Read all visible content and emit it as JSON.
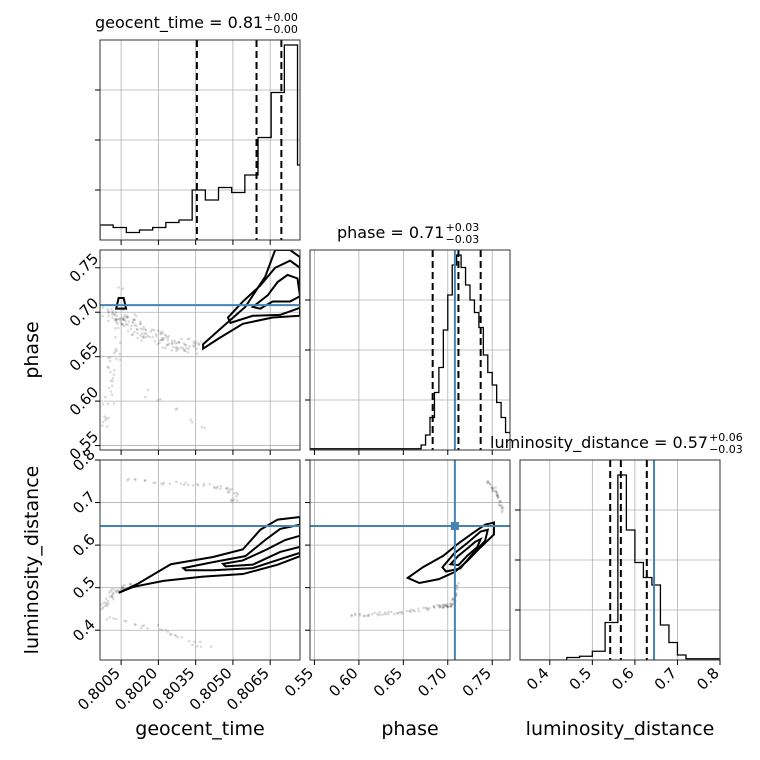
{
  "chart_data": {
    "type": "corner",
    "truth_color": "#4682b4",
    "grid": true,
    "parameters": [
      {
        "name": "geocent_time",
        "label": "geocent_time",
        "range": [
          0.79965,
          0.8077
        ],
        "ticks": [
          0.8005,
          0.802,
          0.8035,
          0.805,
          0.8065
        ],
        "tick_labels": [
          "0.8005",
          "0.8020",
          "0.8035",
          "0.8050",
          "0.8065"
        ],
        "title_main": "geocent_time = 0.81",
        "title_sup": "+0.00",
        "title_sub": "−0.00",
        "quantiles": [
          0.80355,
          0.80595,
          0.80695
        ]
      },
      {
        "name": "phase",
        "label": "phase",
        "range": [
          0.545,
          0.77
        ],
        "ticks": [
          0.55,
          0.6,
          0.65,
          0.7,
          0.75
        ],
        "tick_labels": [
          "0.55",
          "0.60",
          "0.65",
          "0.70",
          "0.75"
        ],
        "title_main": "phase = 0.71",
        "title_sup": "+0.03",
        "title_sub": "−0.03",
        "quantiles": [
          0.683,
          0.712,
          0.737
        ],
        "truth": 0.708
      },
      {
        "name": "luminosity_distance",
        "label": "luminosity_distance",
        "range": [
          0.33,
          0.8
        ],
        "ticks": [
          0.4,
          0.5,
          0.6,
          0.7,
          0.8
        ],
        "tick_labels": [
          "0.4",
          "0.5",
          "0.6",
          "0.7",
          "0.8"
        ],
        "title_main": "luminosity_distance = 0.57",
        "title_sup": "+0.06",
        "title_sub": "−0.03",
        "quantiles": [
          0.542,
          0.567,
          0.628
        ],
        "truth": 0.645
      }
    ],
    "histograms": [
      {
        "param": "geocent_time",
        "bin_edges": [
          0.79965,
          0.80018,
          0.80071,
          0.80124,
          0.80177,
          0.8023,
          0.80283,
          0.80336,
          0.80389,
          0.80442,
          0.80495,
          0.80548,
          0.80601,
          0.80654,
          0.80707,
          0.8076,
          0.8077
        ],
        "counts": [
          0.06,
          0.05,
          0.03,
          0.04,
          0.05,
          0.07,
          0.08,
          0.2,
          0.16,
          0.21,
          0.19,
          0.26,
          0.41,
          0.59,
          0.78,
          0.3
        ]
      },
      {
        "param": "phase",
        "bin_edges": [
          0.545,
          0.67,
          0.675,
          0.68,
          0.685,
          0.69,
          0.695,
          0.7,
          0.705,
          0.71,
          0.715,
          0.72,
          0.725,
          0.73,
          0.735,
          0.74,
          0.745,
          0.75,
          0.755,
          0.76,
          0.765,
          0.77
        ],
        "counts": [
          0.005,
          0.02,
          0.06,
          0.13,
          0.23,
          0.33,
          0.48,
          0.62,
          0.74,
          0.78,
          0.73,
          0.66,
          0.6,
          0.55,
          0.49,
          0.38,
          0.31,
          0.26,
          0.19,
          0.13,
          0.07
        ]
      },
      {
        "param": "luminosity_distance",
        "bin_edges": [
          0.33,
          0.44,
          0.47,
          0.5,
          0.53,
          0.56,
          0.58,
          0.6,
          0.62,
          0.64,
          0.66,
          0.68,
          0.7,
          0.72,
          0.8
        ],
        "counts": [
          0.0,
          0.01,
          0.015,
          0.035,
          0.15,
          0.74,
          0.52,
          0.39,
          0.33,
          0.3,
          0.14,
          0.07,
          0.02,
          0.005
        ]
      }
    ],
    "contours_2d": [
      {
        "x": "geocent_time",
        "y": "phase",
        "levels": [
          [
            [
              0.8058,
              0.706
            ],
            [
              0.8064,
              0.719
            ],
            [
              0.8068,
              0.734
            ],
            [
              0.8072,
              0.742
            ],
            [
              0.8076,
              0.738
            ],
            [
              0.8077,
              0.718
            ],
            [
              0.8073,
              0.712
            ],
            [
              0.8066,
              0.712
            ],
            [
              0.8061,
              0.704
            ]
          ],
          [
            [
              0.8048,
              0.694
            ],
            [
              0.8054,
              0.712
            ],
            [
              0.8061,
              0.73
            ],
            [
              0.8067,
              0.75
            ],
            [
              0.8073,
              0.758
            ],
            [
              0.8077,
              0.75
            ],
            [
              0.8077,
              0.705
            ],
            [
              0.8069,
              0.697
            ],
            [
              0.8058,
              0.696
            ],
            [
              0.8049,
              0.688
            ]
          ],
          [
            [
              0.8038,
              0.664
            ],
            [
              0.8046,
              0.684
            ],
            [
              0.8055,
              0.706
            ],
            [
              0.8063,
              0.74
            ],
            [
              0.8067,
              0.77
            ],
            [
              0.8073,
              0.77
            ],
            [
              0.8077,
              0.762
            ],
            [
              0.8077,
              0.696
            ],
            [
              0.8066,
              0.694
            ],
            [
              0.8054,
              0.687
            ],
            [
              0.8044,
              0.67
            ],
            [
              0.8038,
              0.659
            ]
          ],
          [
            [
              0.8003,
              0.704
            ],
            [
              0.8004,
              0.716
            ],
            [
              0.8006,
              0.716
            ],
            [
              0.8007,
              0.704
            ]
          ]
        ]
      },
      {
        "x": "geocent_time",
        "y": "luminosity_distance",
        "levels": [
          [
            [
              0.8046,
              0.556
            ],
            [
              0.8054,
              0.564
            ],
            [
              0.8063,
              0.588
            ],
            [
              0.8071,
              0.612
            ],
            [
              0.8077,
              0.622
            ],
            [
              0.8077,
              0.596
            ],
            [
              0.8069,
              0.584
            ],
            [
              0.8058,
              0.554
            ],
            [
              0.8047,
              0.55
            ]
          ],
          [
            [
              0.803,
              0.546
            ],
            [
              0.8042,
              0.56
            ],
            [
              0.8055,
              0.574
            ],
            [
              0.8063,
              0.612
            ],
            [
              0.8069,
              0.638
            ],
            [
              0.8077,
              0.648
            ],
            [
              0.8077,
              0.582
            ],
            [
              0.8069,
              0.567
            ],
            [
              0.8058,
              0.546
            ],
            [
              0.8042,
              0.541
            ],
            [
              0.8031,
              0.541
            ]
          ],
          [
            [
              0.8004,
              0.488
            ],
            [
              0.8012,
              0.51
            ],
            [
              0.8025,
              0.555
            ],
            [
              0.8042,
              0.572
            ],
            [
              0.8054,
              0.59
            ],
            [
              0.8061,
              0.636
            ],
            [
              0.8068,
              0.66
            ],
            [
              0.8077,
              0.666
            ],
            [
              0.8077,
              0.574
            ],
            [
              0.8068,
              0.554
            ],
            [
              0.8054,
              0.532
            ],
            [
              0.8038,
              0.526
            ],
            [
              0.8022,
              0.516
            ],
            [
              0.801,
              0.502
            ]
          ]
        ]
      },
      {
        "x": "phase",
        "y": "luminosity_distance",
        "levels": [
          [
            [
              0.703,
              0.555
            ],
            [
              0.712,
              0.575
            ],
            [
              0.722,
              0.592
            ],
            [
              0.731,
              0.608
            ],
            [
              0.737,
              0.614
            ],
            [
              0.733,
              0.595
            ],
            [
              0.722,
              0.575
            ],
            [
              0.712,
              0.553
            ]
          ],
          [
            [
              0.694,
              0.548
            ],
            [
              0.707,
              0.58
            ],
            [
              0.722,
              0.605
            ],
            [
              0.737,
              0.632
            ],
            [
              0.745,
              0.636
            ],
            [
              0.742,
              0.61
            ],
            [
              0.729,
              0.582
            ],
            [
              0.714,
              0.545
            ],
            [
              0.698,
              0.538
            ]
          ],
          [
            [
              0.655,
              0.523
            ],
            [
              0.672,
              0.548
            ],
            [
              0.695,
              0.575
            ],
            [
              0.712,
              0.604
            ],
            [
              0.728,
              0.628
            ],
            [
              0.742,
              0.648
            ],
            [
              0.752,
              0.653
            ],
            [
              0.752,
              0.625
            ],
            [
              0.737,
              0.595
            ],
            [
              0.722,
              0.563
            ],
            [
              0.708,
              0.537
            ],
            [
              0.69,
              0.52
            ],
            [
              0.668,
              0.511
            ]
          ]
        ]
      }
    ]
  }
}
